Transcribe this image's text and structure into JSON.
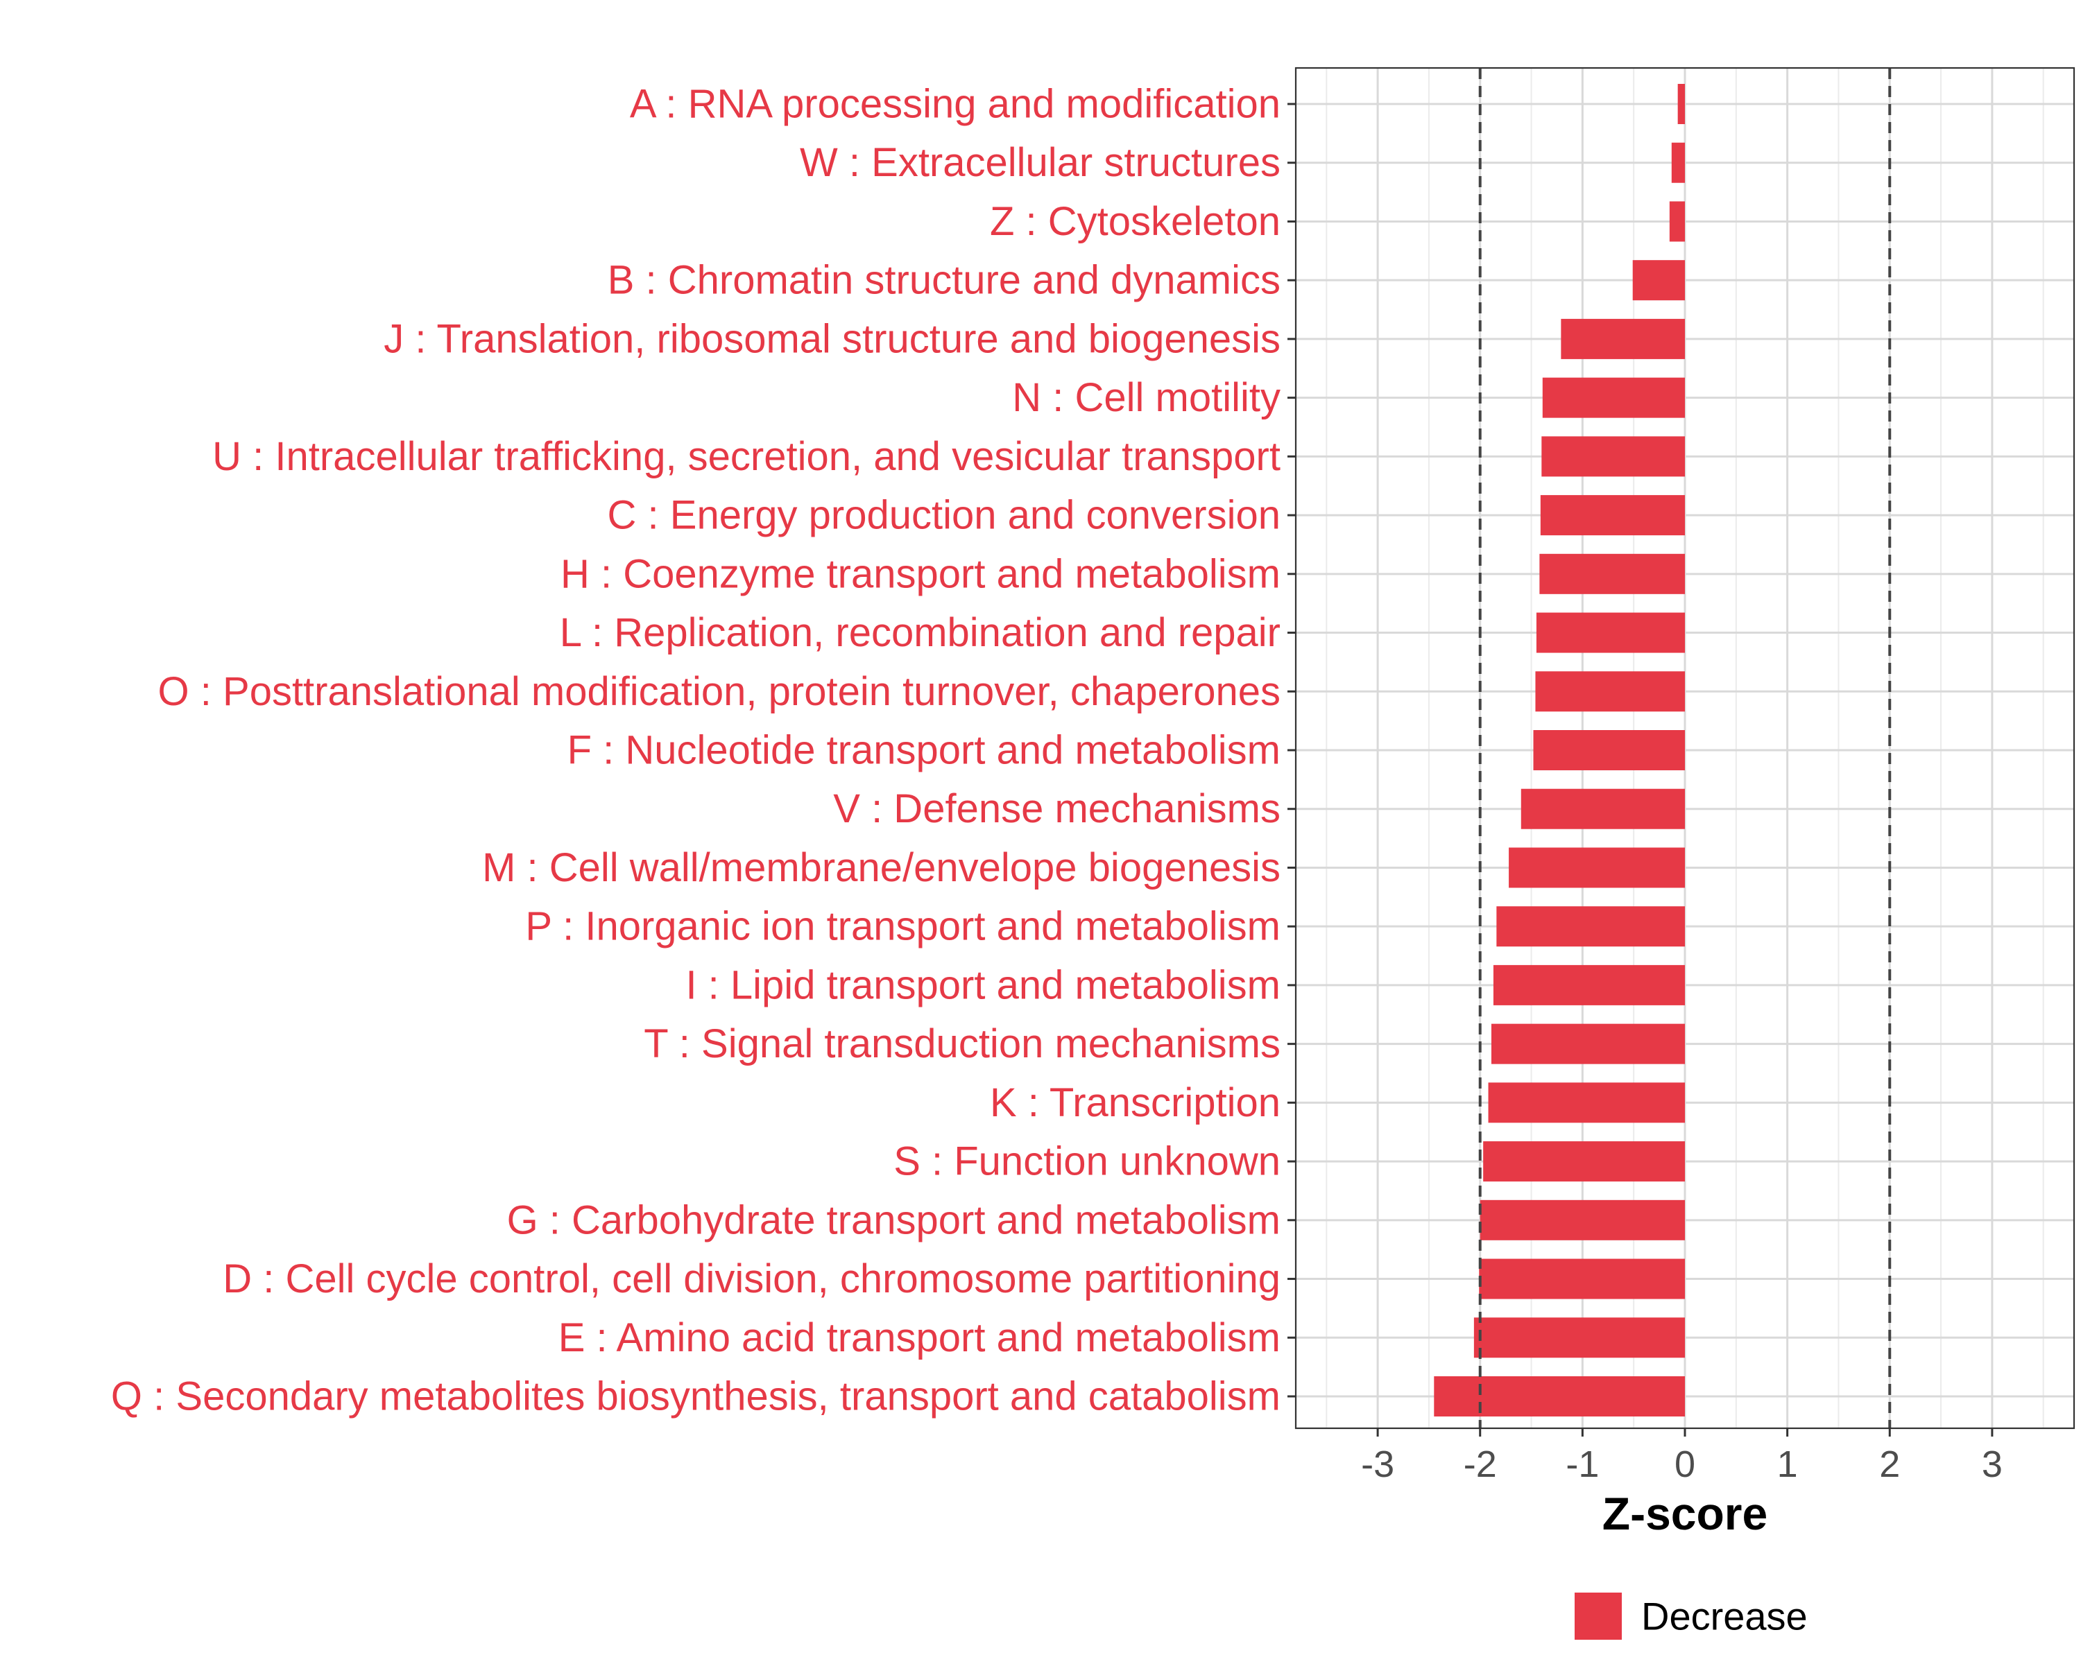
{
  "chart_data": {
    "type": "bar",
    "orientation": "horizontal",
    "categories": [
      "A : RNA processing and modification",
      "W : Extracellular structures",
      "Z : Cytoskeleton",
      "B : Chromatin structure and dynamics",
      "J : Translation, ribosomal structure and biogenesis",
      "N : Cell motility",
      "U : Intracellular trafficking, secretion, and vesicular transport",
      "C : Energy production and conversion",
      "H : Coenzyme transport and metabolism",
      "L : Replication, recombination and repair",
      "O : Posttranslational modification, protein turnover, chaperones",
      "F : Nucleotide transport and metabolism",
      "V : Defense mechanisms",
      "M : Cell wall/membrane/envelope biogenesis",
      "P : Inorganic ion transport and metabolism",
      "I : Lipid transport and metabolism",
      "T : Signal transduction mechanisms",
      "K : Transcription",
      "S : Function unknown",
      "G : Carbohydrate transport and metabolism",
      "D : Cell cycle control, cell division, chromosome partitioning",
      "E : Amino acid transport and metabolism",
      "Q : Secondary metabolites biosynthesis, transport and catabolism"
    ],
    "values": [
      -0.07,
      -0.13,
      -0.15,
      -0.51,
      -1.21,
      -1.39,
      -1.4,
      -1.41,
      -1.42,
      -1.45,
      -1.46,
      -1.48,
      -1.6,
      -1.72,
      -1.84,
      -1.87,
      -1.89,
      -1.92,
      -1.97,
      -2.0,
      -2.01,
      -2.06,
      -2.45
    ],
    "series": [
      {
        "name": "Decrease",
        "color": "#E63946"
      }
    ],
    "xlabel": "Z-score",
    "ylabel": "",
    "xlim": [
      -3.8,
      3.8
    ],
    "xticks": [
      -3,
      -2,
      -1,
      0,
      1,
      2,
      3
    ],
    "xtick_labels": [
      "-3",
      "-2",
      "-1",
      "0",
      "1",
      "2",
      "3"
    ],
    "reference_lines": [
      -2,
      2
    ],
    "grid": true,
    "legend_position": "bottom",
    "label_color": "#E63946"
  }
}
